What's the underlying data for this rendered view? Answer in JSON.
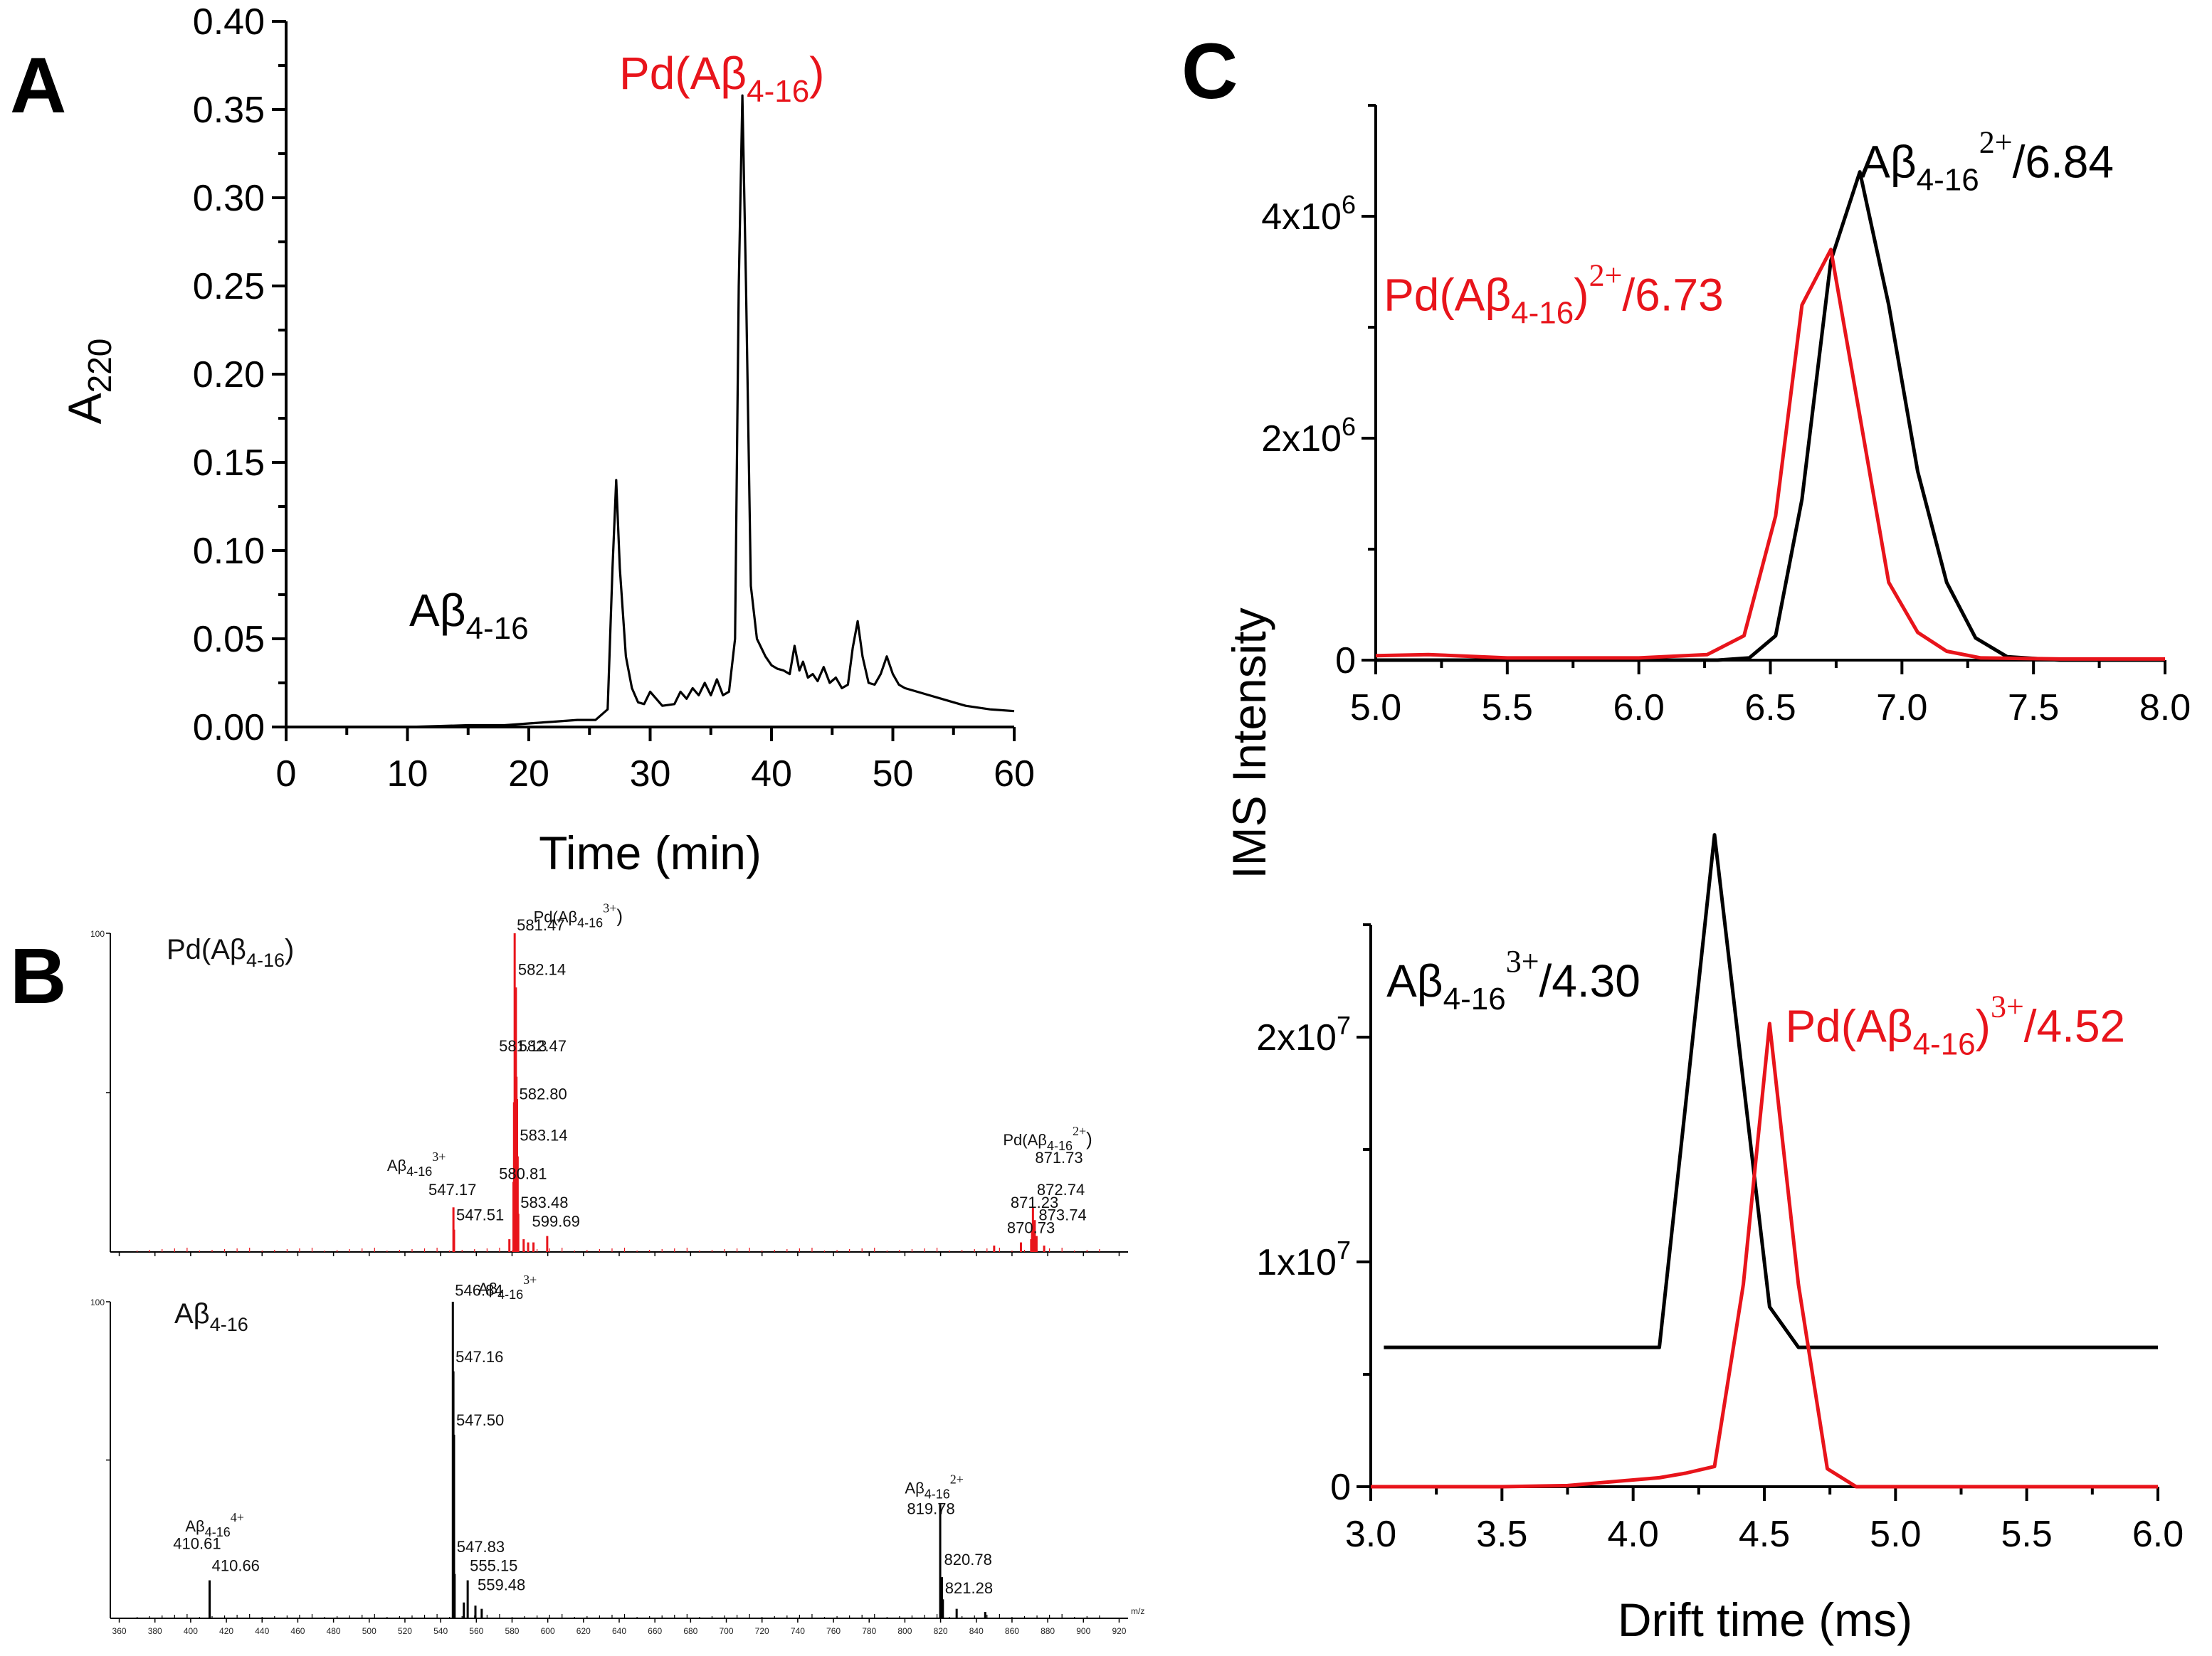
{
  "panels": {
    "A": "A",
    "B": "B",
    "C": "C"
  },
  "chart_data": [
    {
      "id": "A",
      "type": "line",
      "xlabel": "Time (min)",
      "ylabel": "A220",
      "xlim": [
        0,
        60
      ],
      "ylim": [
        0,
        0.4
      ],
      "xticks": [
        0,
        10,
        20,
        30,
        40,
        50,
        60
      ],
      "xtick_labels": [
        "0",
        "10",
        "20",
        "30",
        "40",
        "50",
        "60"
      ],
      "yticks": [
        0,
        0.05,
        0.1,
        0.15,
        0.2,
        0.25,
        0.3,
        0.35,
        0.4
      ],
      "ytick_labels": [
        "0.00",
        "0.05",
        "0.10",
        "0.15",
        "0.20",
        "0.25",
        "0.30",
        "0.35",
        "0.40"
      ],
      "annotations": [
        {
          "text": "Aβ4-16",
          "main": "Aβ",
          "sub": "4-16",
          "color": "#000000",
          "x": 15,
          "y": 0.065
        },
        {
          "text": "Pd(Aβ4-16)",
          "pre": "Pd(",
          "main": "Aβ",
          "sub": "4-16",
          "post": ")",
          "color": "#e8141b",
          "x": 48,
          "y": 0.36
        }
      ],
      "series": [
        {
          "name": "chromatogram",
          "color": "#000000",
          "x": [
            0,
            5,
            10,
            15,
            18,
            20,
            22,
            24,
            25.5,
            26.5,
            26.9,
            27.2,
            27.5,
            28,
            28.5,
            29,
            29.5,
            30,
            31,
            32,
            32.5,
            33,
            33.5,
            34,
            34.5,
            35,
            35.5,
            36,
            36.5,
            37,
            37.3,
            37.6,
            37.9,
            38.3,
            38.8,
            39.5,
            40,
            40.5,
            41,
            41.5,
            41.9,
            42.3,
            42.6,
            43,
            43.4,
            43.8,
            44.3,
            44.8,
            45.3,
            45.8,
            46.3,
            46.7,
            47.1,
            47.5,
            48,
            48.5,
            49,
            49.5,
            50,
            50.5,
            51,
            52,
            53,
            54,
            55,
            56,
            58,
            60
          ],
          "y": [
            0,
            0,
            0,
            0.001,
            0.001,
            0.002,
            0.003,
            0.004,
            0.004,
            0.01,
            0.09,
            0.14,
            0.09,
            0.04,
            0.022,
            0.014,
            0.013,
            0.02,
            0.012,
            0.013,
            0.02,
            0.016,
            0.022,
            0.018,
            0.025,
            0.018,
            0.027,
            0.018,
            0.02,
            0.05,
            0.25,
            0.358,
            0.25,
            0.08,
            0.05,
            0.04,
            0.035,
            0.033,
            0.032,
            0.03,
            0.046,
            0.032,
            0.037,
            0.028,
            0.03,
            0.026,
            0.034,
            0.025,
            0.028,
            0.022,
            0.024,
            0.045,
            0.06,
            0.04,
            0.025,
            0.024,
            0.03,
            0.04,
            0.03,
            0.024,
            0.022,
            0.02,
            0.018,
            0.016,
            0.014,
            0.012,
            0.01,
            0.009
          ]
        }
      ]
    },
    {
      "id": "B",
      "type": "bar",
      "spectra": [
        {
          "title": "Pd(Aβ4-16)",
          "pre": "Pd(",
          "main": "Aβ",
          "sub": "4-16",
          "post": ")",
          "xlim": [
            355,
            925
          ],
          "bar_color": "#e8141b",
          "peaks": [
            [
              580.81,
              22
            ],
            [
              581.13,
              47
            ],
            [
              581.47,
              100
            ],
            [
              582.14,
              83
            ],
            [
              582.47,
              55
            ],
            [
              582.8,
              48
            ],
            [
              583.14,
              30
            ],
            [
              583.48,
              12
            ],
            [
              547.17,
              14
            ],
            [
              547.51,
              7
            ],
            [
              599.69,
              5
            ],
            [
              870.73,
              4
            ],
            [
              871.23,
              8
            ],
            [
              871.73,
              14
            ],
            [
              872.74,
              10
            ],
            [
              873.74,
              5
            ],
            [
              586.5,
              4
            ],
            [
              589.0,
              3
            ],
            [
              592.0,
              3
            ],
            [
              578.5,
              4
            ],
            [
              850.0,
              2
            ],
            [
              865.0,
              3
            ],
            [
              878.0,
              2
            ]
          ],
          "labels": [
            {
              "text": "581.47",
              "x": 581.47,
              "y": 100
            },
            {
              "text": "582.14",
              "x": 582.14,
              "y": 86
            },
            {
              "text": "581.13",
              "x": 571.5,
              "y": 62
            },
            {
              "text": "582.47",
              "x": 582.47,
              "y": 62
            },
            {
              "text": "582.80",
              "x": 582.8,
              "y": 47
            },
            {
              "text": "583.14",
              "x": 583.14,
              "y": 34
            },
            {
              "text": "580.81",
              "x": 571.5,
              "y": 22
            },
            {
              "text": "547.17",
              "x": 532.0,
              "y": 17
            },
            {
              "text": "547.51",
              "x": 547.51,
              "y": 9
            },
            {
              "text": "583.48",
              "x": 583.48,
              "y": 13
            },
            {
              "text": "599.69",
              "x": 590.0,
              "y": 7
            },
            {
              "text": "871.73",
              "x": 871.73,
              "y": 27
            },
            {
              "text": "872.74",
              "x": 872.74,
              "y": 17
            },
            {
              "text": "871.23",
              "x": 858.0,
              "y": 13
            },
            {
              "text": "873.74",
              "x": 873.74,
              "y": 9
            },
            {
              "text": "870.73",
              "x": 856.0,
              "y": 5
            }
          ],
          "ion_labels": [
            {
              "text": "Pd(Aβ4-16)3+",
              "pre": "Pd(",
              "main": "Aβ",
              "sub": "4-16",
              "post": ")",
              "sup": "3+",
              "x": 592.0,
              "y": 103
            },
            {
              "text": "Aβ4-163+",
              "main": "Aβ",
              "sub": "4-16",
              "sup": "3+",
              "x": 510.0,
              "y": 25
            },
            {
              "text": "Pd(Aβ4-16)2+",
              "pre": "Pd(",
              "main": "Aβ",
              "sub": "4-16",
              "post": ")",
              "sup": "2+",
              "x": 855.0,
              "y": 33
            }
          ]
        },
        {
          "title": "Aβ4-16",
          "main": "Aβ",
          "sub": "4-16",
          "xlim": [
            355,
            925
          ],
          "bar_color": "#000000",
          "peaks": [
            [
              546.84,
              100
            ],
            [
              547.16,
              78
            ],
            [
              547.5,
              58
            ],
            [
              547.83,
              14
            ],
            [
              555.15,
              12
            ],
            [
              559.48,
              4
            ],
            [
              410.61,
              12
            ],
            [
              410.66,
              9
            ],
            [
              819.78,
              36
            ],
            [
              820.78,
              13
            ],
            [
              821.28,
              6
            ],
            [
              553.0,
              5
            ],
            [
              563.0,
              3
            ],
            [
              829.0,
              3
            ],
            [
              845.0,
              2
            ]
          ],
          "labels": [
            {
              "text": "546.84",
              "x": 546.84,
              "y": 101
            },
            {
              "text": "547.16",
              "x": 547.16,
              "y": 80
            },
            {
              "text": "547.50",
              "x": 547.5,
              "y": 60
            },
            {
              "text": "547.83",
              "x": 547.83,
              "y": 20
            },
            {
              "text": "555.15",
              "x": 555.15,
              "y": 14
            },
            {
              "text": "559.48",
              "x": 559.48,
              "y": 8
            },
            {
              "text": "410.61",
              "x": 389.0,
              "y": 21
            },
            {
              "text": "410.66",
              "x": 410.66,
              "y": 14
            },
            {
              "text": "819.78",
              "x": 800.0,
              "y": 32
            },
            {
              "text": "820.78",
              "x": 820.78,
              "y": 16
            },
            {
              "text": "821.28",
              "x": 821.28,
              "y": 7
            }
          ],
          "ion_labels": [
            {
              "text": "Aβ4-163+",
              "main": "Aβ",
              "sub": "4-16",
              "sup": "3+",
              "x": 561.0,
              "y": 102
            },
            {
              "text": "Aβ4-164+",
              "main": "Aβ",
              "sub": "4-16",
              "sup": "4+",
              "x": 397.0,
              "y": 27
            },
            {
              "text": "Aβ4-162+",
              "main": "Aβ",
              "sub": "4-16",
              "sup": "2+",
              "x": 800.0,
              "y": 39
            }
          ]
        }
      ],
      "xticks": [
        360,
        380,
        400,
        420,
        440,
        460,
        480,
        500,
        520,
        540,
        560,
        580,
        600,
        620,
        640,
        660,
        680,
        700,
        720,
        740,
        760,
        780,
        800,
        820,
        840,
        860,
        880,
        900,
        920
      ],
      "yaxis_top_label": "100",
      "x_unit": "m/z"
    },
    {
      "id": "C-top",
      "type": "line",
      "xlabel": "",
      "ylabel": "IMS Intensity",
      "xlim": [
        5.0,
        8.0
      ],
      "ylim": [
        0,
        5000000
      ],
      "xticks": [
        5.0,
        5.5,
        6.0,
        6.5,
        7.0,
        7.5,
        8.0
      ],
      "xtick_labels": [
        "5.0",
        "5.5",
        "6.0",
        "6.5",
        "7.0",
        "7.5",
        "8.0"
      ],
      "yticks": [
        0,
        2000000,
        4000000
      ],
      "ytick_labels": [
        {
          "text": "0",
          "base": "",
          "exp": ""
        },
        {
          "text": "2x106",
          "base": "2x10",
          "exp": "6"
        },
        {
          "text": "4x106",
          "base": "4x10",
          "exp": "6"
        }
      ],
      "yminor": [
        1000000,
        3000000,
        5000000
      ],
      "annotations": [
        {
          "text": "Aβ4-162+/6.84",
          "main": "Aβ",
          "sub": "4-16",
          "sup": "2+",
          "post": "/6.84",
          "color": "#000000",
          "x": 6.84,
          "y": 4350000
        },
        {
          "text": "Pd(Aβ4-16)2+/6.73",
          "pre": "Pd(",
          "main": "Aβ",
          "sub": "4-16",
          "post2": ")",
          "sup": "2+",
          "post": "/6.73",
          "color": "#e8141b",
          "x": 5.03,
          "y": 3150000
        }
      ],
      "series": [
        {
          "name": "Aβ4-16 2+",
          "color": "#000000",
          "x": [
            5.0,
            5.5,
            6.0,
            6.3,
            6.42,
            6.52,
            6.62,
            6.73,
            6.84,
            6.95,
            7.06,
            7.17,
            7.28,
            7.4,
            7.6,
            8.0
          ],
          "y": [
            0,
            0,
            0,
            0,
            20000,
            220000,
            1450000,
            3600000,
            4400000,
            3200000,
            1700000,
            700000,
            200000,
            30000,
            0,
            0
          ]
        },
        {
          "name": "Pd(Aβ4-16) 2+",
          "color": "#e8141b",
          "x": [
            5.0,
            5.2,
            5.5,
            6.0,
            6.26,
            6.4,
            6.52,
            6.62,
            6.73,
            6.84,
            6.95,
            7.06,
            7.17,
            7.3,
            7.6,
            8.0
          ],
          "y": [
            40000,
            50000,
            20000,
            20000,
            50000,
            220000,
            1300000,
            3200000,
            3700000,
            2200000,
            700000,
            250000,
            80000,
            20000,
            10000,
            10000
          ]
        }
      ]
    },
    {
      "id": "C-bottom",
      "type": "line",
      "xlabel": "Drift time (ms)",
      "ylabel": "",
      "xlim": [
        3.0,
        6.0
      ],
      "ylim": [
        0,
        25000000
      ],
      "xticks": [
        3.0,
        3.5,
        4.0,
        4.5,
        5.0,
        5.5,
        6.0
      ],
      "xtick_labels": [
        "3.0",
        "3.5",
        "4.0",
        "4.5",
        "5.0",
        "5.5",
        "6.0"
      ],
      "yticks": [
        0,
        10000000,
        20000000
      ],
      "ytick_labels": [
        {
          "text": "0",
          "base": "",
          "exp": ""
        },
        {
          "text": "1x107",
          "base": "1x10",
          "exp": "7"
        },
        {
          "text": "2x107",
          "base": "2x10",
          "exp": "7"
        }
      ],
      "yminor": [
        5000000,
        15000000,
        25000000
      ],
      "annotations": [
        {
          "text": "Aβ4-163+/4.30",
          "main": "Aβ",
          "sub": "4-16",
          "sup": "3+",
          "post": "/4.30",
          "color": "#000000",
          "x": 3.06,
          "y": 21800000
        },
        {
          "text": "Pd(Aβ4-16)3+/4.52",
          "pre": "Pd(",
          "main": "Aβ",
          "sub": "4-16",
          "post2": ")",
          "sup": "3+",
          "post": "/4.52",
          "color": "#e8141b",
          "x": 4.58,
          "y": 19800000
        }
      ],
      "series": [
        {
          "name": "Aβ4-16 3+",
          "color": "#000000",
          "x": [
            3.05,
            3.5,
            4.0,
            4.1,
            4.2,
            4.31,
            4.42,
            4.52,
            4.63,
            4.75,
            5.0,
            5.5,
            6.0
          ],
          "y": [
            6200000,
            6200000,
            6200000,
            6200000,
            17000000,
            29000000,
            18000000,
            8000000,
            6200000,
            6200000,
            6200000,
            6200000,
            6200000
          ]
        },
        {
          "name": "Pd(Aβ4-16) 3+",
          "color": "#e8141b",
          "x": [
            3.0,
            3.5,
            3.75,
            4.0,
            4.1,
            4.2,
            4.31,
            4.42,
            4.52,
            4.63,
            4.74,
            4.85,
            5.0,
            5.5,
            6.0
          ],
          "y": [
            0,
            0,
            50000,
            300000,
            400000,
            600000,
            900000,
            9000000,
            20600000,
            9000000,
            800000,
            0,
            0,
            0,
            0
          ]
        }
      ]
    }
  ]
}
